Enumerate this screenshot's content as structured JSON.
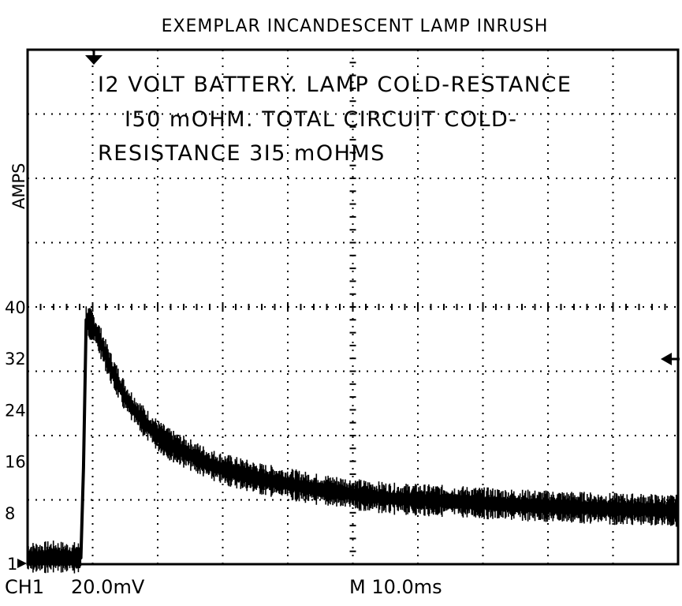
{
  "chart_data": {
    "type": "line",
    "title": "EXEMPLAR INCANDESCENT LAMP INRUSH",
    "annotation_lines": [
      "I2 VOLT BATTERY. LAMP COLD-RESTANCE",
      "I50 mOHM. TOTAL CIRCUIT COLD-",
      "RESISTANCE 3I5 mOHMS"
    ],
    "ylabel": "AMPS",
    "xlabel": "",
    "y_ticks": [
      {
        "value": 40,
        "label": "40"
      },
      {
        "value": 32,
        "label": "32"
      },
      {
        "value": 24,
        "label": "24"
      },
      {
        "value": 16,
        "label": "16"
      },
      {
        "value": 8,
        "label": "8"
      }
    ],
    "ground_marker": "1",
    "ylim": [
      0,
      80
    ],
    "xlim": [
      0,
      100
    ],
    "grid": true,
    "units_x": "ms",
    "series": [
      {
        "x": [
          0,
          2,
          4,
          6,
          8.2,
          8.6,
          9,
          10,
          11,
          12,
          13,
          14,
          15,
          16,
          18,
          20,
          22,
          24,
          26,
          28,
          30,
          33,
          36,
          40,
          44,
          48,
          52,
          56,
          60,
          65,
          70,
          75,
          80,
          85,
          90,
          95,
          100
        ],
        "y": [
          1,
          1,
          1.2,
          1,
          1,
          15,
          38,
          37,
          35,
          32.5,
          30,
          28,
          26,
          24.5,
          22,
          20,
          18.5,
          17.5,
          16.5,
          15.5,
          14.8,
          14,
          13.2,
          12.5,
          11.7,
          11.2,
          10.6,
          10.2,
          10,
          9.8,
          9.5,
          9.2,
          9,
          8.8,
          8.6,
          8.5,
          8.3
        ]
      }
    ],
    "readouts": {
      "channel": "CH1",
      "volts_per_div": "20.0mV",
      "timebase": "M 10.0ms"
    }
  }
}
